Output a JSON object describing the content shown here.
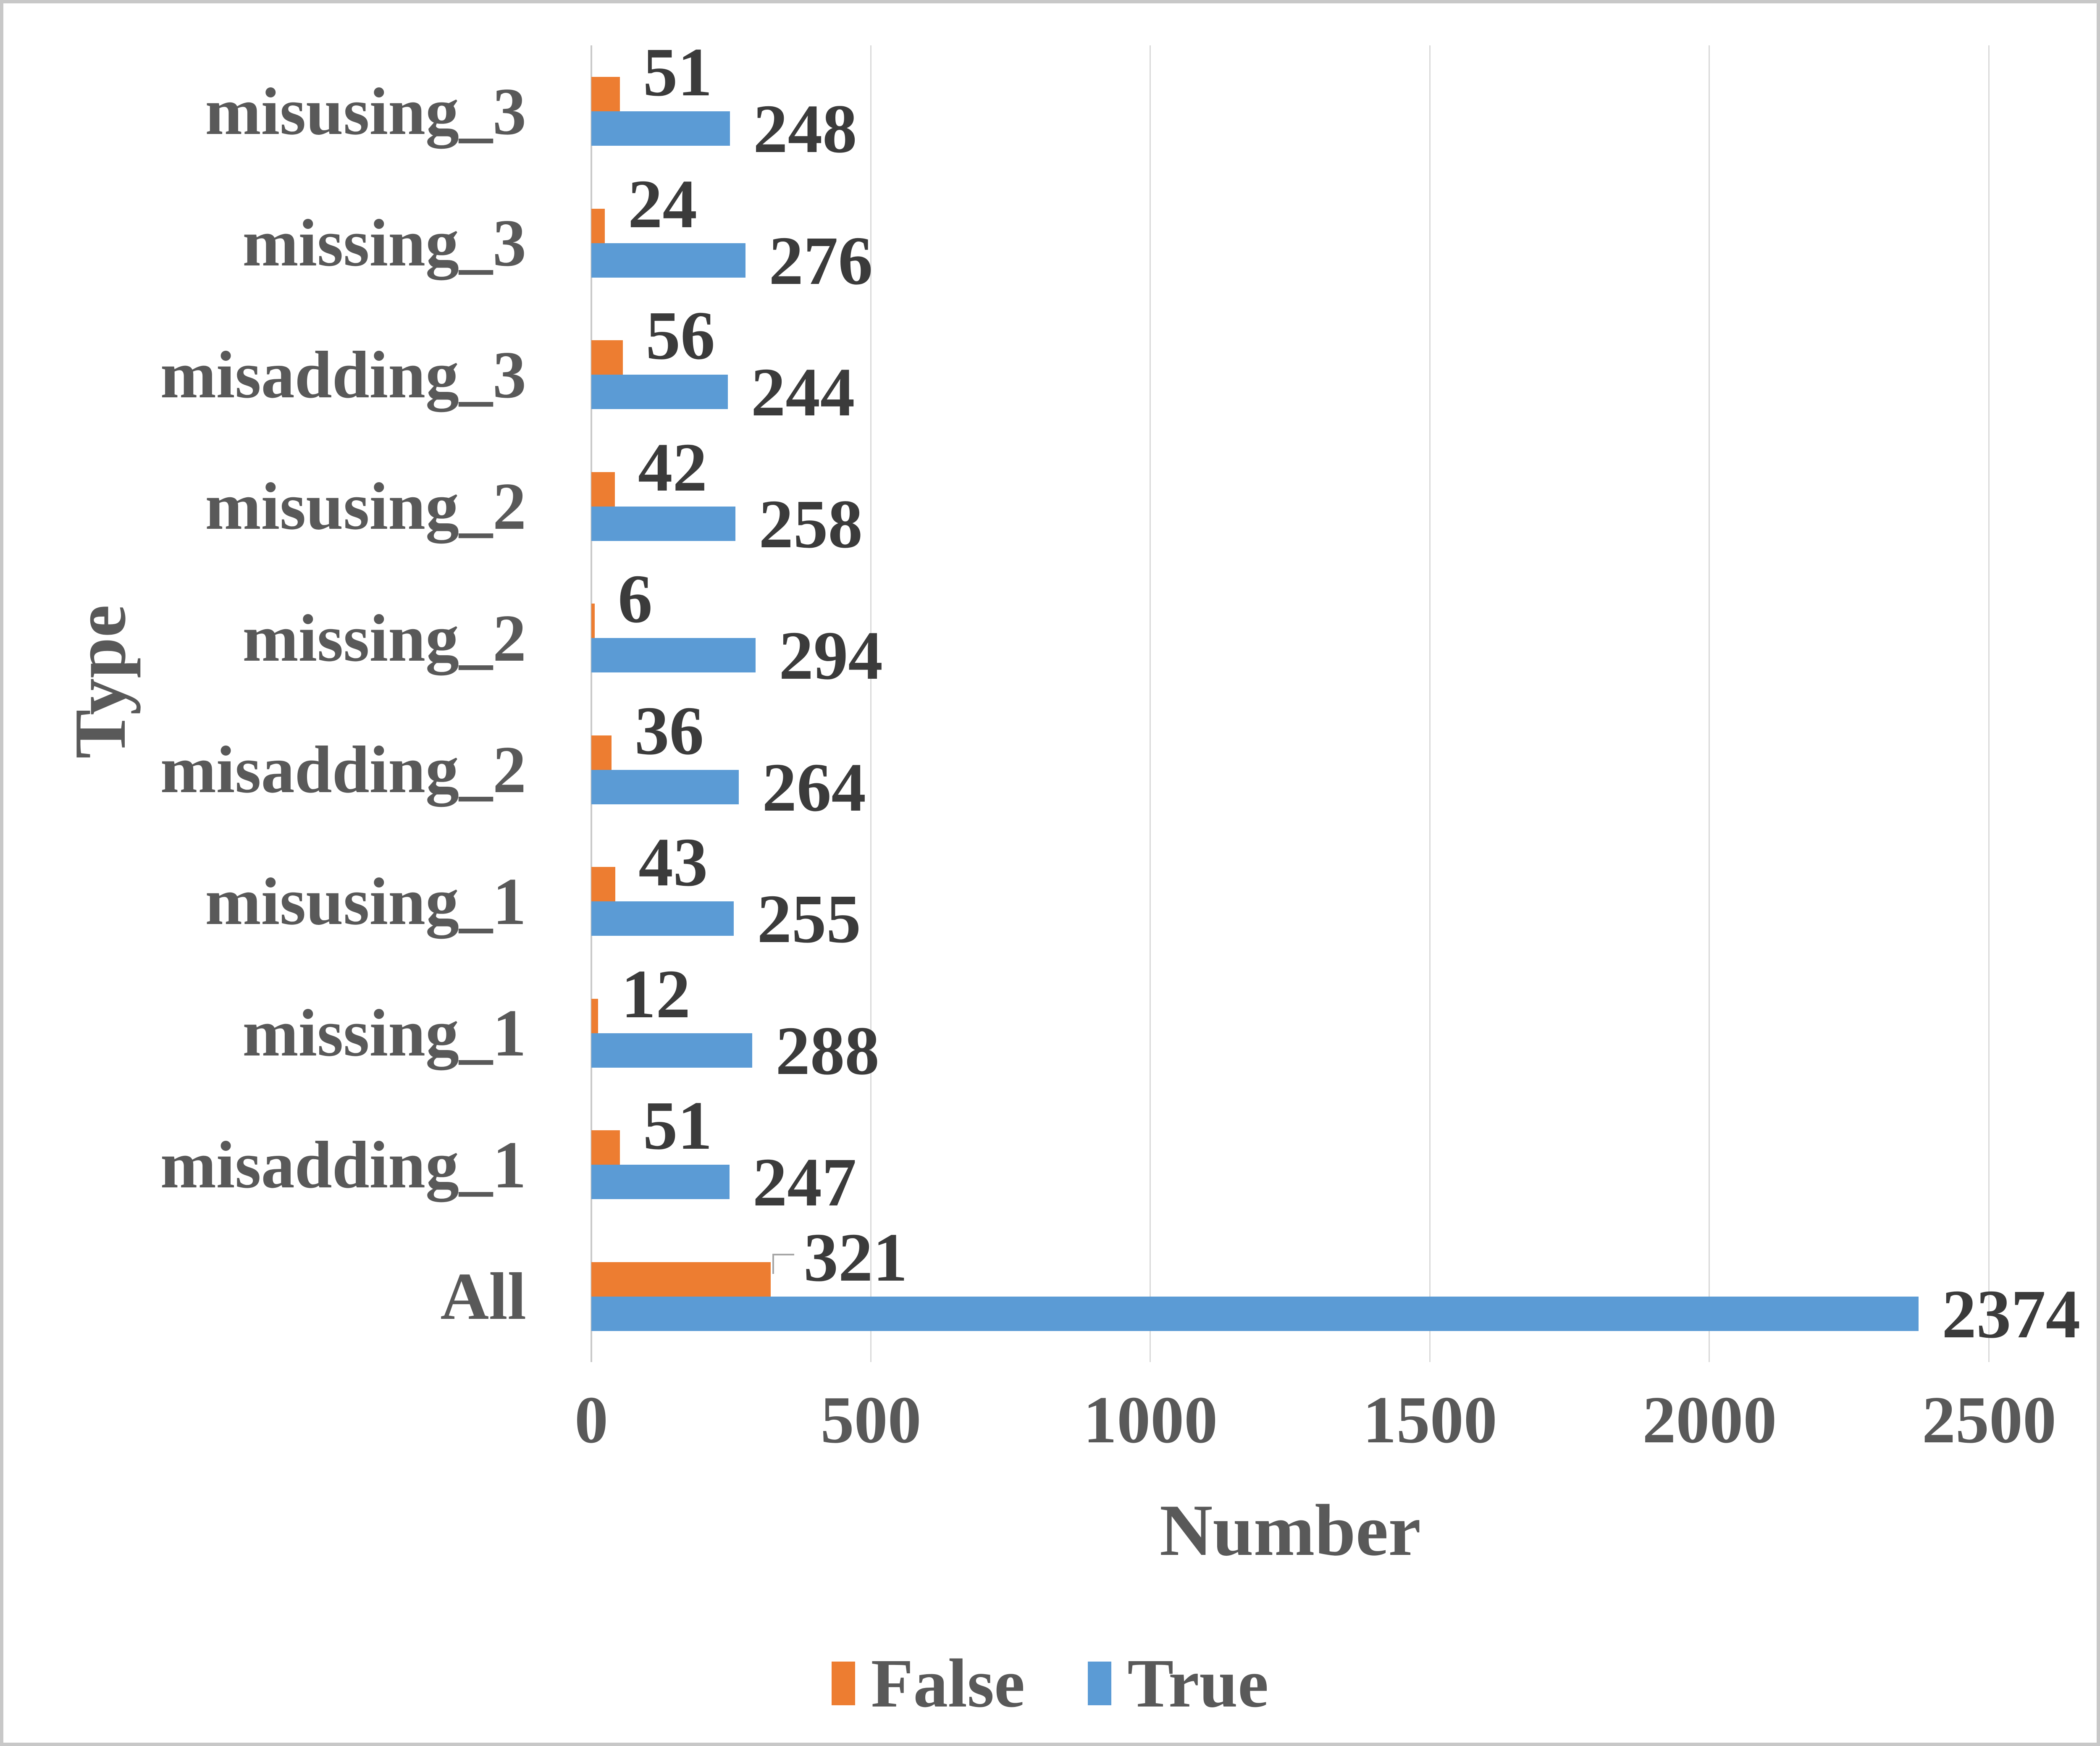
{
  "chart_data": {
    "type": "bar",
    "orientation": "horizontal",
    "title": "",
    "xlabel": "Number",
    "ylabel": "Type",
    "categories": [
      "misusing_3",
      "missing_3",
      "misadding_3",
      "misusing_2",
      "missing_2",
      "misadding_2",
      "misusing_1",
      "missing_1",
      "misadding_1",
      "All"
    ],
    "series": [
      {
        "name": "False",
        "color": "#ED7D31",
        "values": [
          51,
          24,
          56,
          42,
          6,
          36,
          43,
          12,
          51,
          321
        ]
      },
      {
        "name": "True",
        "color": "#5B9BD5",
        "values": [
          248,
          276,
          244,
          258,
          294,
          264,
          255,
          288,
          247,
          2374
        ]
      }
    ],
    "x_ticks": [
      0,
      500,
      1000,
      1500,
      2000,
      2500
    ],
    "xlim": [
      0,
      2660
    ],
    "grid": "vertical-gridlines-on",
    "legend_position": "bottom",
    "data_labels": "outside-end",
    "leader_line": {
      "category": "All",
      "series": "False"
    }
  }
}
